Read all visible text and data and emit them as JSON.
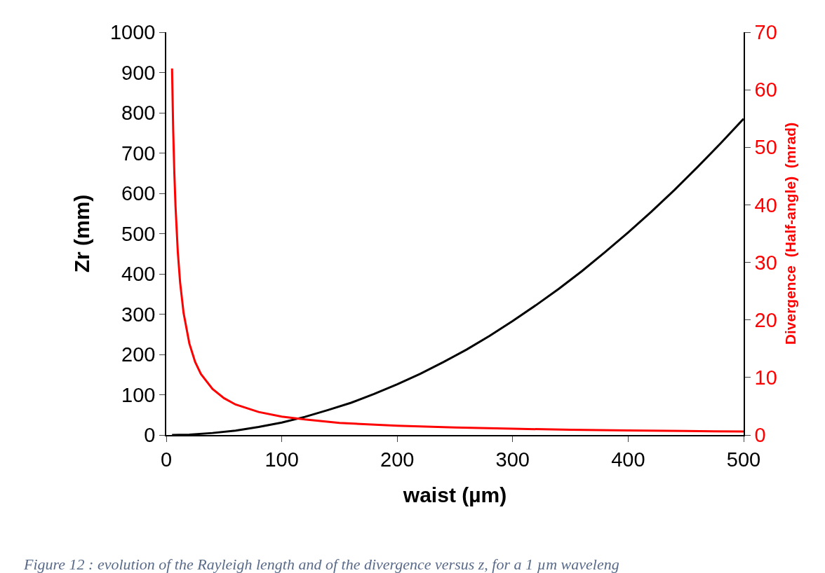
{
  "chart_data": {
    "type": "line",
    "xlabel": "waist (µm)",
    "ylabel": "Zr (mm)",
    "y2label": "Divergence  (Half-angle)  (mrad)",
    "xlim": [
      0,
      500
    ],
    "xticks": [
      0,
      100,
      200,
      300,
      400,
      500
    ],
    "ylim": [
      0,
      1000
    ],
    "yticks": [
      0,
      100,
      200,
      300,
      400,
      500,
      600,
      700,
      800,
      900,
      1000
    ],
    "y2lim": [
      0,
      70
    ],
    "y2ticks": [
      0,
      10,
      20,
      30,
      40,
      50,
      60,
      70
    ],
    "legend": false,
    "marker": "none",
    "line_style": "solid",
    "series": [
      {
        "color": "#000000",
        "x": [
          5,
          20,
          40,
          60,
          80,
          100,
          120,
          140,
          160,
          180,
          200,
          220,
          240,
          260,
          280,
          300,
          320,
          340,
          360,
          380,
          400,
          420,
          440,
          460,
          480,
          500
        ],
        "values": [
          0,
          1,
          5,
          11,
          20,
          31,
          45,
          62,
          80,
          102,
          126,
          152,
          181,
          212,
          246,
          283,
          322,
          363,
          407,
          454,
          503,
          554,
          608,
          665,
          724,
          785
        ]
      },
      {
        "color": "#ff0000",
        "axis": "y2",
        "x": [
          5,
          6,
          7,
          8,
          10,
          12,
          15,
          20,
          25,
          30,
          40,
          50,
          60,
          80,
          100,
          120,
          150,
          200,
          250,
          300,
          350,
          400,
          450,
          500
        ],
        "values": [
          63.7,
          53,
          45.5,
          39.8,
          31.8,
          26.5,
          21.2,
          15.9,
          12.7,
          10.6,
          8,
          6.4,
          5.3,
          4,
          3.2,
          2.7,
          2.1,
          1.6,
          1.3,
          1.1,
          0.9,
          0.8,
          0.7,
          0.6
        ]
      }
    ],
    "annotations": [
      "Figure 12 : evolution of the Rayleigh length and of the divergence versus z, for a 1 µm waveleng"
    ]
  }
}
